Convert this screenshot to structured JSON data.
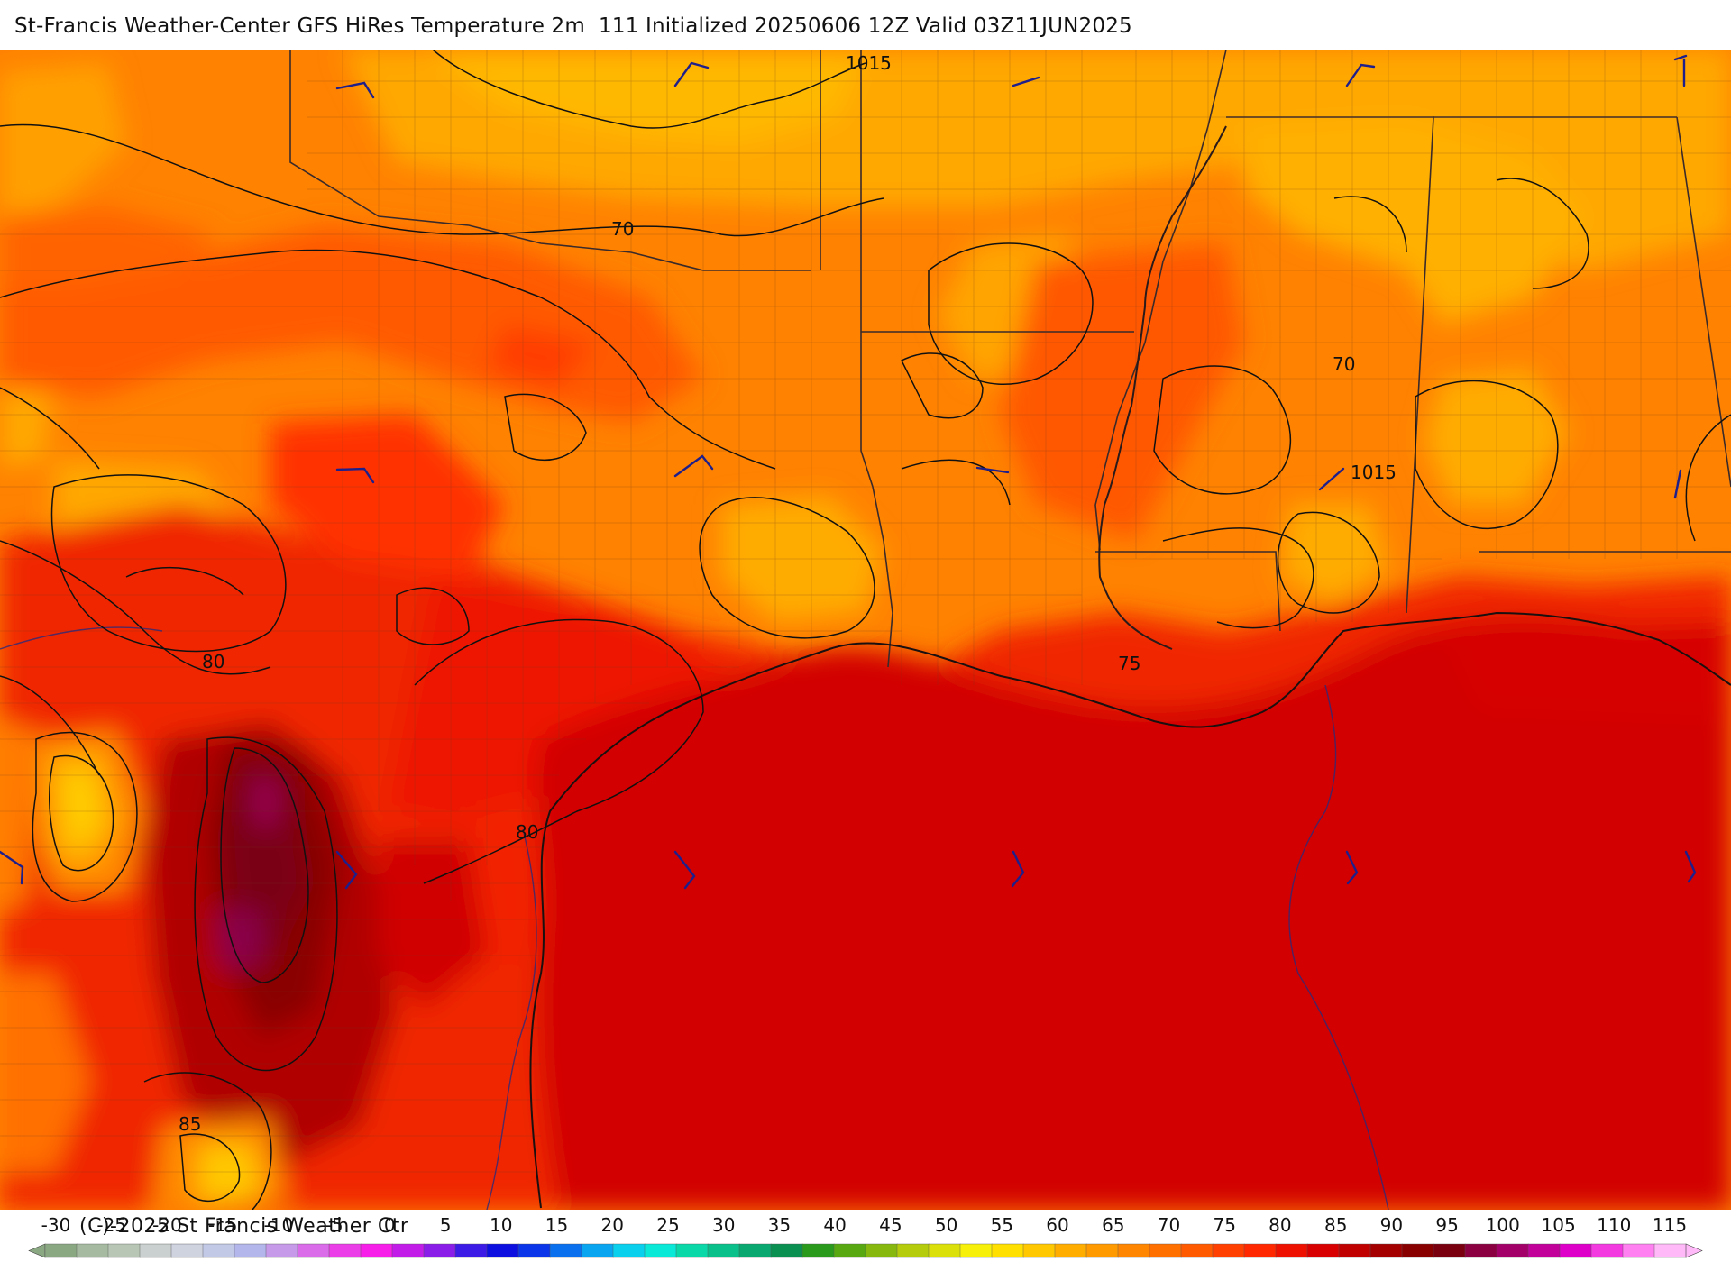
{
  "title": "St-Francis Weather-Center GFS HiRes Temperature 2m  111 Initialized 20250606 12Z Valid 03Z11JUN2025",
  "copyright": "(C)-2025 St Francis Weather Ctr",
  "map": {
    "field": "Temperature 2m",
    "contour_labels": [
      {
        "id": "iso-1015-north",
        "text": "1015"
      },
      {
        "id": "iso-70-tx",
        "text": "70"
      },
      {
        "id": "iso-70-ms",
        "text": "70"
      },
      {
        "id": "iso-1015-ms",
        "text": "1015"
      },
      {
        "id": "iso-75-la",
        "text": "75"
      },
      {
        "id": "iso-80-w",
        "text": "80"
      },
      {
        "id": "iso-80-tx",
        "text": "80"
      },
      {
        "id": "iso-85-s",
        "text": "85"
      }
    ]
  },
  "colorbar": {
    "ticks": [
      "-30",
      "-25",
      "-20",
      "-15",
      "-10",
      "-5",
      "0",
      "5",
      "10",
      "15",
      "20",
      "25",
      "30",
      "35",
      "40",
      "45",
      "50",
      "55",
      "60",
      "65",
      "70",
      "75",
      "80",
      "85",
      "90",
      "95",
      "100",
      "105",
      "110",
      "115"
    ],
    "colors": [
      "#8aa882",
      "#a5baa0",
      "#b8c6b5",
      "#c9d0cf",
      "#cfd2df",
      "#c2c9e6",
      "#b2b6ea",
      "#c79ae9",
      "#da6ce9",
      "#ec3ee8",
      "#f61ee8",
      "#c21de8",
      "#8a1ee8",
      "#3c1be6",
      "#0c0fe0",
      "#0a35e8",
      "#0a70ee",
      "#0aa5f0",
      "#0ad0ee",
      "#0ae8d8",
      "#0ad8a8",
      "#0ac08a",
      "#08a870",
      "#0a9050",
      "#2a9a1c",
      "#58a812",
      "#86b80e",
      "#b4cc0c",
      "#dce00a",
      "#f6f00a",
      "#ffe000",
      "#ffc800",
      "#ffae00",
      "#ff9a00",
      "#ff8600",
      "#ff7000",
      "#ff5a00",
      "#ff4000",
      "#ff2800",
      "#ee1000",
      "#d80000",
      "#c00000",
      "#a40000",
      "#880000",
      "#7a0010",
      "#8a0040",
      "#a4006a",
      "#c2009a",
      "#de00c8",
      "#f23ae0",
      "#ff80f0",
      "#ffb8f8"
    ]
  },
  "colors": {
    "ocean": "#d20000",
    "text": "#111111",
    "wind": "#1f1f8c",
    "contour": "#000000",
    "boundary": "#3a2a2a"
  }
}
